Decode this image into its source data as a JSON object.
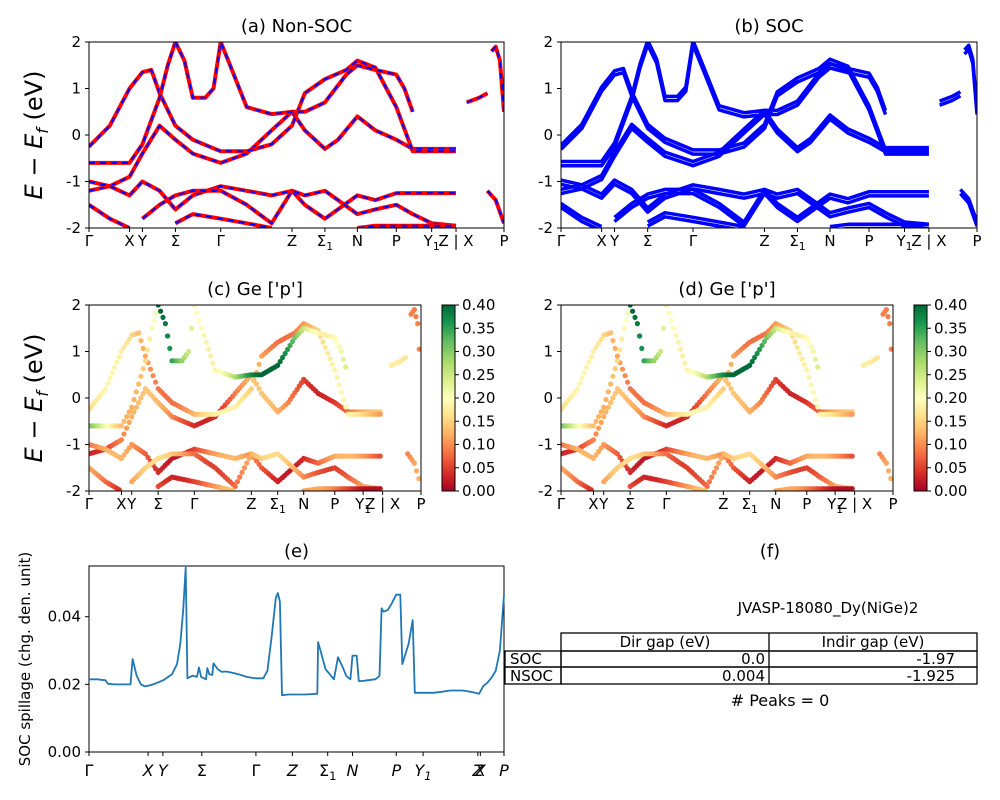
{
  "kpath": {
    "labels": [
      "Γ",
      "X",
      "Y",
      "Σ",
      "Γ",
      "Z",
      "Σ1",
      "N",
      "P",
      "Y1",
      "Z | X",
      "P"
    ],
    "positions": [
      0,
      0.0977,
      0.1287,
      0.2083,
      0.3173,
      0.4891,
      0.5685,
      0.6467,
      0.7404,
      0.8257,
      0.8844,
      1.0
    ]
  },
  "chart_data": [
    {
      "id": "a",
      "type": "line",
      "title": "(a) Non-SOC",
      "ylabel": "E − E_f (eV)",
      "ylim": [
        -2,
        2
      ],
      "yticks": [
        -2,
        -1,
        0,
        1,
        2
      ],
      "series": [
        {
          "style": "solid",
          "color": "#ff0000",
          "points": "bands"
        },
        {
          "style": "dashed",
          "color": "#0000ff",
          "points": "bands"
        }
      ],
      "bands": [
        [
          [
            0,
            -1.2
          ],
          [
            0.05,
            -1.1
          ],
          [
            0.0977,
            -0.9
          ],
          [
            0.1287,
            -0.4
          ],
          [
            0.17,
            0.2
          ],
          [
            0.2083,
            -0.1
          ],
          [
            0.25,
            -0.4
          ],
          [
            0.3173,
            -0.6
          ],
          [
            0.38,
            -0.4
          ],
          [
            0.44,
            0.1
          ],
          [
            0.4891,
            0.5
          ],
          [
            0.52,
            0.1
          ],
          [
            0.5685,
            -0.3
          ],
          [
            0.6,
            -0.1
          ],
          [
            0.6467,
            0.4
          ],
          [
            0.69,
            0.1
          ],
          [
            0.7404,
            -0.1
          ],
          [
            0.78,
            -0.3
          ],
          [
            0.8257,
            -0.3
          ],
          [
            0.8844,
            -0.3
          ]
        ],
        [
          [
            0,
            -0.25
          ],
          [
            0.05,
            0.2
          ],
          [
            0.0977,
            1.0
          ],
          [
            0.1287,
            1.35
          ],
          [
            0.15,
            1.4
          ],
          [
            0.17,
            0.9
          ],
          [
            0.2083,
            0.2
          ],
          [
            0.25,
            -0.1
          ],
          [
            0.3173,
            -0.35
          ],
          [
            0.38,
            -0.35
          ],
          [
            0.44,
            -0.2
          ],
          [
            0.4891,
            0.2
          ],
          [
            0.52,
            0.9
          ],
          [
            0.5685,
            1.2
          ],
          [
            0.62,
            1.4
          ],
          [
            0.6467,
            1.6
          ],
          [
            0.69,
            1.45
          ],
          [
            0.7404,
            0.6
          ],
          [
            0.78,
            -0.35
          ],
          [
            0.8257,
            -0.35
          ],
          [
            0.8844,
            -0.35
          ]
        ],
        [
          [
            0,
            -0.6
          ],
          [
            0.05,
            -0.6
          ],
          [
            0.0977,
            -0.6
          ],
          [
            0.1287,
            -0.2
          ],
          [
            0.17,
            0.8
          ],
          [
            0.19,
            1.5
          ],
          [
            0.2083,
            2.0
          ]
        ],
        [
          [
            0.2083,
            2.0
          ],
          [
            0.23,
            1.6
          ],
          [
            0.25,
            0.8
          ],
          [
            0.28,
            0.8
          ],
          [
            0.3,
            1.0
          ],
          [
            0.3173,
            2.0
          ],
          [
            0.34,
            1.5
          ],
          [
            0.38,
            0.6
          ],
          [
            0.44,
            0.45
          ],
          [
            0.4891,
            0.5
          ],
          [
            0.52,
            0.5
          ],
          [
            0.5685,
            0.7
          ],
          [
            0.62,
            1.3
          ],
          [
            0.6467,
            1.5
          ],
          [
            0.69,
            1.4
          ],
          [
            0.7404,
            1.3
          ],
          [
            0.76,
            1.0
          ],
          [
            0.78,
            0.5
          ]
        ],
        [
          [
            0,
            -1.0
          ],
          [
            0.05,
            -1.1
          ],
          [
            0.0977,
            -1.3
          ],
          [
            0.1287,
            -1.0
          ],
          [
            0.17,
            -1.2
          ],
          [
            0.2083,
            -1.6
          ],
          [
            0.25,
            -1.3
          ],
          [
            0.3173,
            -1.1
          ],
          [
            0.38,
            -1.2
          ],
          [
            0.44,
            -1.3
          ],
          [
            0.4891,
            -1.2
          ],
          [
            0.52,
            -1.5
          ],
          [
            0.5685,
            -1.8
          ],
          [
            0.6467,
            -1.3
          ],
          [
            0.69,
            -1.4
          ],
          [
            0.7404,
            -1.25
          ],
          [
            0.78,
            -1.25
          ],
          [
            0.8257,
            -1.25
          ],
          [
            0.8844,
            -1.25
          ]
        ],
        [
          [
            0,
            -1.5
          ],
          [
            0.05,
            -1.8
          ],
          [
            0.0977,
            -2.0
          ]
        ],
        [
          [
            0.1287,
            -1.8
          ],
          [
            0.17,
            -1.5
          ],
          [
            0.2083,
            -1.3
          ],
          [
            0.25,
            -1.2
          ],
          [
            0.3173,
            -1.2
          ],
          [
            0.38,
            -1.5
          ],
          [
            0.44,
            -1.9
          ],
          [
            0.4891,
            -1.2
          ],
          [
            0.52,
            -1.3
          ],
          [
            0.5685,
            -1.2
          ],
          [
            0.6,
            -1.4
          ],
          [
            0.6467,
            -1.7
          ],
          [
            0.69,
            -1.6
          ],
          [
            0.7404,
            -1.5
          ],
          [
            0.78,
            -1.7
          ],
          [
            0.8257,
            -1.9
          ],
          [
            0.8844,
            -1.95
          ]
        ],
        [
          [
            0.2083,
            -1.9
          ],
          [
            0.25,
            -1.7
          ],
          [
            0.3173,
            -1.8
          ],
          [
            0.38,
            -1.9
          ],
          [
            0.44,
            -2.0
          ]
        ],
        [
          [
            0.6467,
            -2.0
          ],
          [
            0.69,
            -1.95
          ],
          [
            0.7404,
            -1.95
          ],
          [
            0.8257,
            -1.95
          ],
          [
            0.8844,
            -1.95
          ]
        ],
        [
          [
            0.91,
            0.7
          ],
          [
            0.94,
            0.8
          ],
          [
            0.96,
            0.9
          ]
        ],
        [
          [
            0.97,
            1.8
          ],
          [
            0.98,
            1.9
          ],
          [
            0.99,
            1.6
          ],
          [
            1.0,
            0.5
          ]
        ],
        [
          [
            0.96,
            -1.2
          ],
          [
            0.98,
            -1.4
          ],
          [
            1.0,
            -1.9
          ]
        ]
      ]
    },
    {
      "id": "b",
      "type": "line",
      "title": "(b) SOC",
      "ylim": [
        -2,
        2
      ],
      "yticks": [
        -2,
        -1,
        0,
        1,
        2
      ],
      "series": [
        {
          "style": "solid",
          "color": "#0000ff",
          "points": "bands"
        }
      ],
      "bands": "same_as_a_split"
    },
    {
      "id": "c",
      "type": "scatter",
      "title": "(c)  Ge ['p']",
      "ylabel": "E − E_f (eV)",
      "ylim": [
        -2,
        2
      ],
      "yticks": [
        -2,
        -1,
        0,
        1,
        2
      ],
      "colorbar": {
        "min": 0.0,
        "max": 0.4,
        "ticks": [
          "0.00",
          "0.05",
          "0.10",
          "0.15",
          "0.20",
          "0.25",
          "0.30",
          "0.35",
          "0.40"
        ],
        "colormap": "RdYlGn"
      }
    },
    {
      "id": "d",
      "type": "scatter",
      "title": "(d) Ge ['p']",
      "ylim": [
        -2,
        2
      ],
      "yticks": [
        -2,
        -1,
        0,
        1,
        2
      ],
      "colorbar": {
        "min": 0.0,
        "max": 0.4,
        "ticks": [
          "0.00",
          "0.05",
          "0.10",
          "0.15",
          "0.20",
          "0.25",
          "0.30",
          "0.35",
          "0.40"
        ],
        "colormap": "RdYlGn"
      }
    },
    {
      "id": "e",
      "type": "line",
      "title": "(e)",
      "ylabel": "SOC spillage (chg. den. unit)",
      "ylim": [
        0,
        0.055
      ],
      "yticks": [
        "0.00",
        "0.02",
        "0.04"
      ],
      "xticks": [
        "Γ",
        "X",
        "Y",
        "Σ",
        "Γ",
        "Z",
        "Σ1",
        "N",
        "P",
        "Y1",
        "Z",
        "X",
        "P"
      ],
      "xtick_positions": [
        0,
        0.1424,
        0.178,
        0.2719,
        0.4022,
        0.49,
        0.5752,
        0.635,
        0.7404,
        0.805,
        0.937,
        0.943,
        1.0
      ],
      "color": "#1f77b4",
      "points": [
        [
          0,
          0.0215
        ],
        [
          0.02,
          0.0215
        ],
        [
          0.04,
          0.0212
        ],
        [
          0.045,
          0.0202
        ],
        [
          0.06,
          0.02
        ],
        [
          0.09,
          0.02
        ],
        [
          0.1,
          0.02
        ],
        [
          0.105,
          0.0275
        ],
        [
          0.115,
          0.0225
        ],
        [
          0.125,
          0.02
        ],
        [
          0.135,
          0.0194
        ],
        [
          0.15,
          0.0198
        ],
        [
          0.165,
          0.0205
        ],
        [
          0.18,
          0.0213
        ],
        [
          0.2,
          0.023
        ],
        [
          0.212,
          0.026
        ],
        [
          0.22,
          0.032
        ],
        [
          0.227,
          0.042
        ],
        [
          0.233,
          0.0545
        ],
        [
          0.237,
          0.0218
        ],
        [
          0.25,
          0.0226
        ],
        [
          0.26,
          0.0222
        ],
        [
          0.265,
          0.025
        ],
        [
          0.27,
          0.0222
        ],
        [
          0.282,
          0.0215
        ],
        [
          0.285,
          0.0248
        ],
        [
          0.29,
          0.023
        ],
        [
          0.297,
          0.0228
        ],
        [
          0.3,
          0.0262
        ],
        [
          0.31,
          0.0245
        ],
        [
          0.32,
          0.0237
        ],
        [
          0.33,
          0.0238
        ],
        [
          0.34,
          0.0236
        ],
        [
          0.36,
          0.023
        ],
        [
          0.38,
          0.0222
        ],
        [
          0.4,
          0.0218
        ],
        [
          0.42,
          0.0218
        ],
        [
          0.43,
          0.024
        ],
        [
          0.44,
          0.034
        ],
        [
          0.45,
          0.0455
        ],
        [
          0.455,
          0.047
        ],
        [
          0.46,
          0.0445
        ],
        [
          0.465,
          0.0168
        ],
        [
          0.48,
          0.017
        ],
        [
          0.52,
          0.017
        ],
        [
          0.55,
          0.0172
        ],
        [
          0.552,
          0.0325
        ],
        [
          0.56,
          0.029
        ],
        [
          0.57,
          0.0245
        ],
        [
          0.58,
          0.023
        ],
        [
          0.59,
          0.0215
        ],
        [
          0.6,
          0.028
        ],
        [
          0.61,
          0.0255
        ],
        [
          0.62,
          0.0225
        ],
        [
          0.63,
          0.0215
        ],
        [
          0.635,
          0.0285
        ],
        [
          0.645,
          0.0285
        ],
        [
          0.65,
          0.021
        ],
        [
          0.66,
          0.021
        ],
        [
          0.67,
          0.0212
        ],
        [
          0.69,
          0.0215
        ],
        [
          0.7,
          0.0225
        ],
        [
          0.705,
          0.0425
        ],
        [
          0.71,
          0.0415
        ],
        [
          0.72,
          0.042
        ],
        [
          0.73,
          0.044
        ],
        [
          0.74,
          0.0465
        ],
        [
          0.75,
          0.0465
        ],
        [
          0.755,
          0.026
        ],
        [
          0.77,
          0.032
        ],
        [
          0.78,
          0.039
        ],
        [
          0.785,
          0.0175
        ],
        [
          0.8,
          0.0175
        ],
        [
          0.83,
          0.0175
        ],
        [
          0.85,
          0.0178
        ],
        [
          0.87,
          0.0182
        ],
        [
          0.9,
          0.0182
        ],
        [
          0.92,
          0.0178
        ],
        [
          0.94,
          0.0172
        ],
        [
          0.95,
          0.0195
        ],
        [
          0.96,
          0.0205
        ],
        [
          0.97,
          0.022
        ],
        [
          0.98,
          0.024
        ],
        [
          0.99,
          0.03
        ],
        [
          1.0,
          0.0465
        ]
      ]
    },
    {
      "id": "f",
      "type": "table",
      "title": "(f)",
      "caption": "JVASP-18080_Dy(NiGe)2",
      "columns": [
        "Dir gap (eV)",
        "Indir gap (eV)"
      ],
      "rows": [
        {
          "label": "SOC",
          "values": [
            "0.0",
            "-1.97"
          ]
        },
        {
          "label": "NSOC",
          "values": [
            "0.004",
            "-1.925"
          ]
        }
      ],
      "footer": "# Peaks = 0"
    }
  ]
}
